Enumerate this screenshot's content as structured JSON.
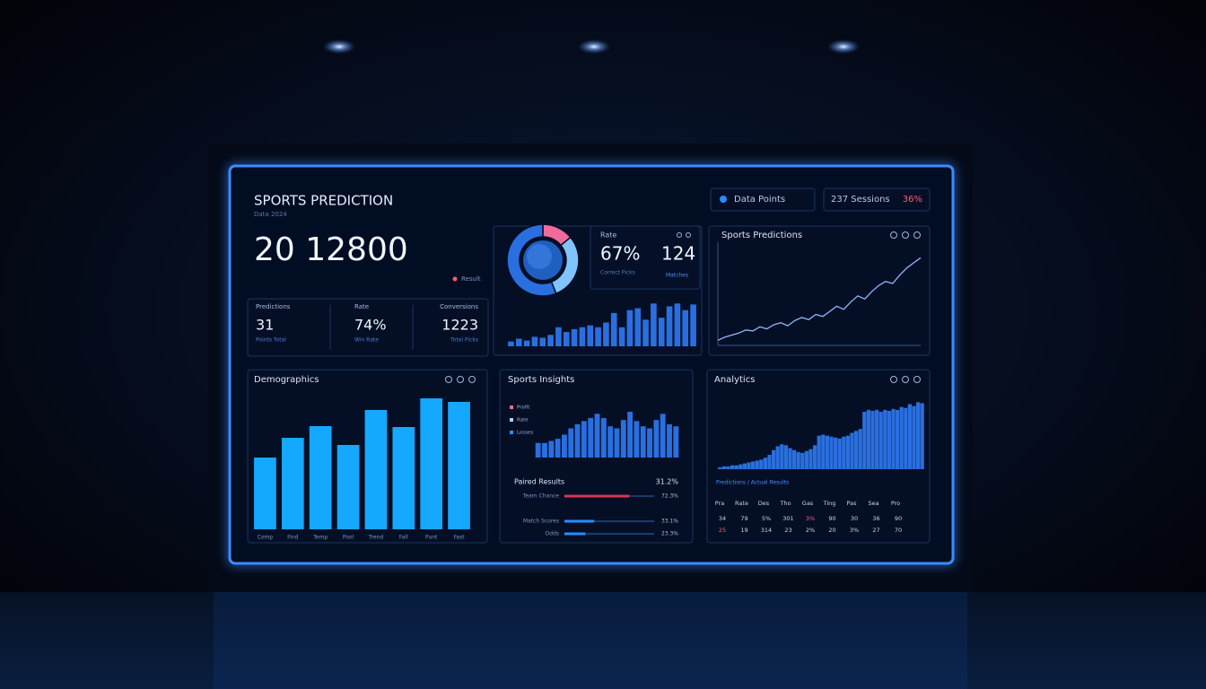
{
  "header": {
    "title": "SPORTS PREDICTION",
    "subtitle": "Data 2024",
    "big_number": "20 12800",
    "result_label": "Result"
  },
  "pills": {
    "points": "Data Points",
    "sessions": "237 Sessions",
    "change": "36%"
  },
  "stats": [
    {
      "label": "Predictions",
      "value": "31",
      "note": "Points Total"
    },
    {
      "label": "Rate",
      "value": "74%",
      "note": "Win Rate"
    },
    {
      "label": "Conversions",
      "value": "1223",
      "note": "Total Picks"
    }
  ],
  "rate_box": {
    "label": "Rate",
    "value": "67%",
    "note": "Correct Picks",
    "value2": "124",
    "note2": "Matches"
  },
  "chart_data": [
    {
      "type": "pie",
      "values": [
        14,
        30,
        56
      ],
      "colors": [
        "#f06a9a",
        "#7fc4ff",
        "#2a6fe0"
      ]
    },
    {
      "type": "bar",
      "values": [
        5,
        8,
        6,
        10,
        9,
        12,
        20,
        15,
        18,
        20,
        22,
        20,
        25,
        35,
        20,
        38,
        40,
        28,
        45,
        30,
        42,
        45,
        38,
        44
      ],
      "ylim": [
        0,
        50
      ],
      "color": "#2a6fe0"
    },
    {
      "type": "line",
      "title": "Sports Predictions",
      "x": [
        1,
        2,
        3,
        4,
        5,
        6,
        7,
        8,
        9,
        10,
        11,
        12,
        13,
        14,
        15,
        16,
        17,
        18,
        19,
        20,
        21,
        22,
        23,
        24,
        25,
        26,
        27,
        28,
        29,
        30
      ],
      "values": [
        5,
        8,
        10,
        12,
        15,
        14,
        18,
        16,
        20,
        22,
        19,
        24,
        27,
        25,
        30,
        28,
        33,
        38,
        35,
        42,
        48,
        45,
        52,
        58,
        62,
        60,
        68,
        75,
        80,
        85
      ],
      "xlim": [
        1,
        30
      ],
      "ylim": [
        0,
        100
      ],
      "color": "#8fb8ff"
    },
    {
      "type": "bar",
      "title": "Demographics",
      "categories": [
        "Comp",
        "Find",
        "Temp",
        "Pool",
        "Trend",
        "Fall",
        "Punt",
        "Fast"
      ],
      "values": [
        80,
        102,
        115,
        94,
        133,
        114,
        146,
        142
      ],
      "ylim": [
        0,
        150
      ],
      "color": "#14a8ff"
    },
    {
      "type": "bar",
      "title": "Sports Insights",
      "legend": [
        {
          "name": "Profit",
          "color": "#f06a9a"
        },
        {
          "name": "Rate",
          "color": "#9fd8ff"
        },
        {
          "name": "Losses",
          "color": "#2a8cff"
        }
      ],
      "values": [
        14,
        14,
        16,
        18,
        22,
        28,
        32,
        35,
        38,
        42,
        38,
        30,
        28,
        36,
        44,
        35,
        30,
        28,
        36,
        42,
        32,
        30
      ],
      "ylim": [
        0,
        50
      ],
      "color": "#2a6fe0"
    },
    {
      "type": "progress",
      "title": "Paired Results",
      "summary": "31.2%",
      "categories": [
        "Team Chance",
        "Match Scores",
        "Odds"
      ],
      "values": [
        72.3,
        33.1,
        23.3
      ],
      "value_labels": [
        "72.3%",
        "33.1%",
        "23.3%"
      ],
      "xlim": [
        0,
        100
      ],
      "colors": [
        "#d9344f",
        "#2a8cff",
        "#2a8cff"
      ]
    },
    {
      "type": "bar",
      "title": "Analytics",
      "subtitle": "Predictions / Actual Results",
      "values": [
        2,
        3,
        3,
        4,
        4,
        5,
        6,
        7,
        8,
        9,
        10,
        12,
        15,
        20,
        24,
        26,
        25,
        22,
        20,
        18,
        17,
        19,
        21,
        25,
        35,
        36,
        35,
        34,
        33,
        32,
        34,
        35,
        38,
        40,
        42,
        60,
        62,
        61,
        62,
        60,
        62,
        61,
        63,
        62,
        65,
        64,
        68,
        66,
        70,
        69
      ],
      "ylim": [
        0,
        75
      ],
      "color": "#2a6fe0"
    }
  ],
  "table": {
    "header": [
      "Pra",
      "Rate",
      "Des",
      "Tho",
      "Gas",
      "Ting",
      "Pas",
      "Sea",
      "Pro"
    ],
    "rows": [
      [
        "34",
        "79",
        "5%",
        "301",
        "3%",
        "90",
        "30",
        "36",
        "90"
      ],
      [
        "25",
        "19",
        "314",
        "23",
        "2%",
        "20",
        "3%",
        "27",
        "70"
      ]
    ]
  }
}
